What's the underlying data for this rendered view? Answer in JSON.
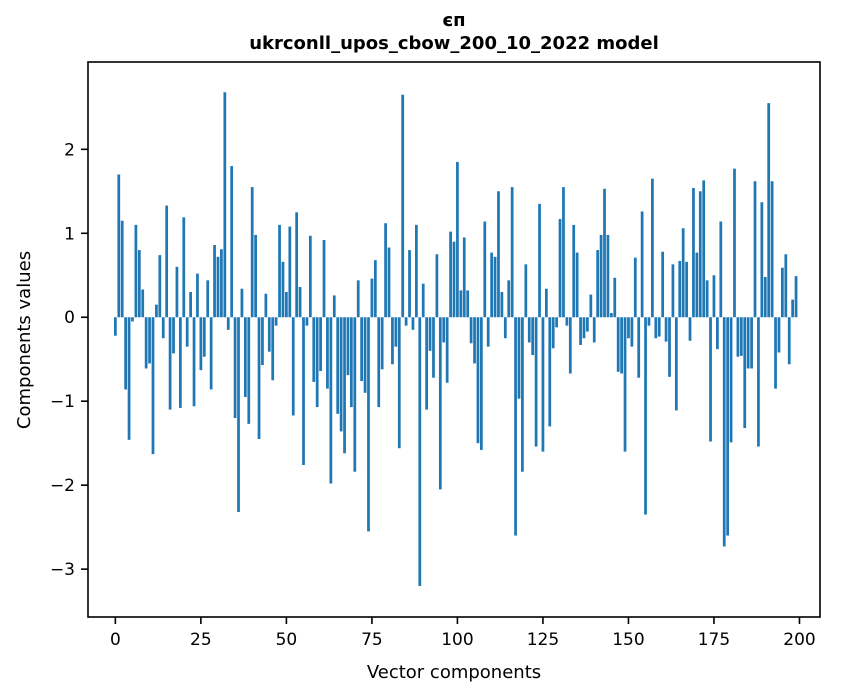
{
  "figure": {
    "title": "єп",
    "subtitle": "ukrconll_upos_cbow_200_10_2022 model",
    "xlabel": "Vector components",
    "ylabel": "Components values"
  },
  "chart_data": {
    "type": "bar",
    "title": "єп",
    "subtitle": "ukrconll_upos_cbow_200_10_2022 model",
    "xlabel": "Vector components",
    "ylabel": "Components values",
    "bar_color": "#1f77b4",
    "background_color": "#ffffff",
    "grid": false,
    "x_tick_labels": [
      "0",
      "25",
      "50",
      "75",
      "100",
      "125",
      "150",
      "175",
      "200"
    ],
    "x_tick_values": [
      0,
      25,
      50,
      75,
      100,
      125,
      150,
      175,
      200
    ],
    "y_tick_labels": [
      "−3",
      "−2",
      "−1",
      "0",
      "1",
      "2"
    ],
    "y_tick_values": [
      -3,
      -2,
      -1,
      0,
      1,
      2
    ],
    "xlim": [
      -8,
      206
    ],
    "ylim": [
      -3.57,
      3.04
    ],
    "x": "vector component index 0..199",
    "values": [
      -0.22,
      1.7,
      1.15,
      -0.86,
      -1.46,
      -0.05,
      1.1,
      0.8,
      0.33,
      -0.61,
      -0.55,
      -1.63,
      0.15,
      0.74,
      -0.25,
      1.33,
      -1.1,
      -0.43,
      0.6,
      -1.08,
      1.19,
      -0.35,
      0.3,
      -1.06,
      0.52,
      -0.63,
      -0.47,
      0.44,
      -0.86,
      0.86,
      0.72,
      0.81,
      2.68,
      -0.15,
      1.8,
      -1.2,
      -2.32,
      0.34,
      -0.95,
      -1.27,
      1.55,
      0.98,
      -1.45,
      -0.57,
      0.28,
      -0.41,
      -0.75,
      -0.1,
      1.1,
      0.66,
      0.3,
      1.08,
      -1.17,
      1.25,
      0.36,
      -1.76,
      -0.1,
      0.97,
      -0.77,
      -1.07,
      -0.64,
      0.92,
      -0.85,
      -1.98,
      0.26,
      -1.15,
      -1.36,
      -1.62,
      -0.69,
      -1.07,
      -1.84,
      0.44,
      -0.76,
      -0.9,
      -2.55,
      0.46,
      0.68,
      -1.07,
      -0.62,
      1.12,
      0.83,
      -0.56,
      -0.35,
      -1.56,
      2.65,
      -0.1,
      0.8,
      -0.15,
      1.1,
      -3.2,
      0.4,
      -1.1,
      -0.4,
      -0.72,
      0.75,
      -2.05,
      -0.3,
      -0.78,
      1.02,
      0.9,
      1.85,
      0.32,
      0.95,
      0.32,
      -0.31,
      -0.55,
      -1.5,
      -1.58,
      1.14,
      -0.35,
      0.77,
      0.72,
      1.5,
      0.3,
      -0.25,
      0.44,
      1.55,
      -2.6,
      -0.97,
      -1.84,
      0.63,
      -0.3,
      -0.45,
      -1.54,
      1.35,
      -1.6,
      0.34,
      -1.3,
      -0.37,
      -0.12,
      1.17,
      1.55,
      -0.1,
      -0.67,
      1.1,
      0.77,
      -0.33,
      -0.25,
      -0.17,
      0.27,
      -0.3,
      0.8,
      0.98,
      1.53,
      0.98,
      0.05,
      0.47,
      -0.65,
      -0.67,
      -1.6,
      -0.25,
      -0.35,
      0.71,
      -0.72,
      1.26,
      -2.35,
      -0.1,
      1.65,
      -0.25,
      -0.23,
      0.78,
      -0.29,
      -0.71,
      0.63,
      -1.11,
      0.67,
      1.06,
      0.66,
      -0.28,
      1.54,
      0.77,
      1.5,
      1.63,
      0.44,
      -1.48,
      0.5,
      -0.38,
      1.14,
      -2.73,
      -2.6,
      -1.49,
      1.77,
      -0.47,
      -0.46,
      -1.32,
      -0.61,
      -0.61,
      1.62,
      -1.54,
      1.37,
      0.48,
      2.55,
      1.62,
      -0.85,
      -0.42,
      0.59,
      0.75,
      -0.56,
      0.21,
      0.49
    ]
  }
}
